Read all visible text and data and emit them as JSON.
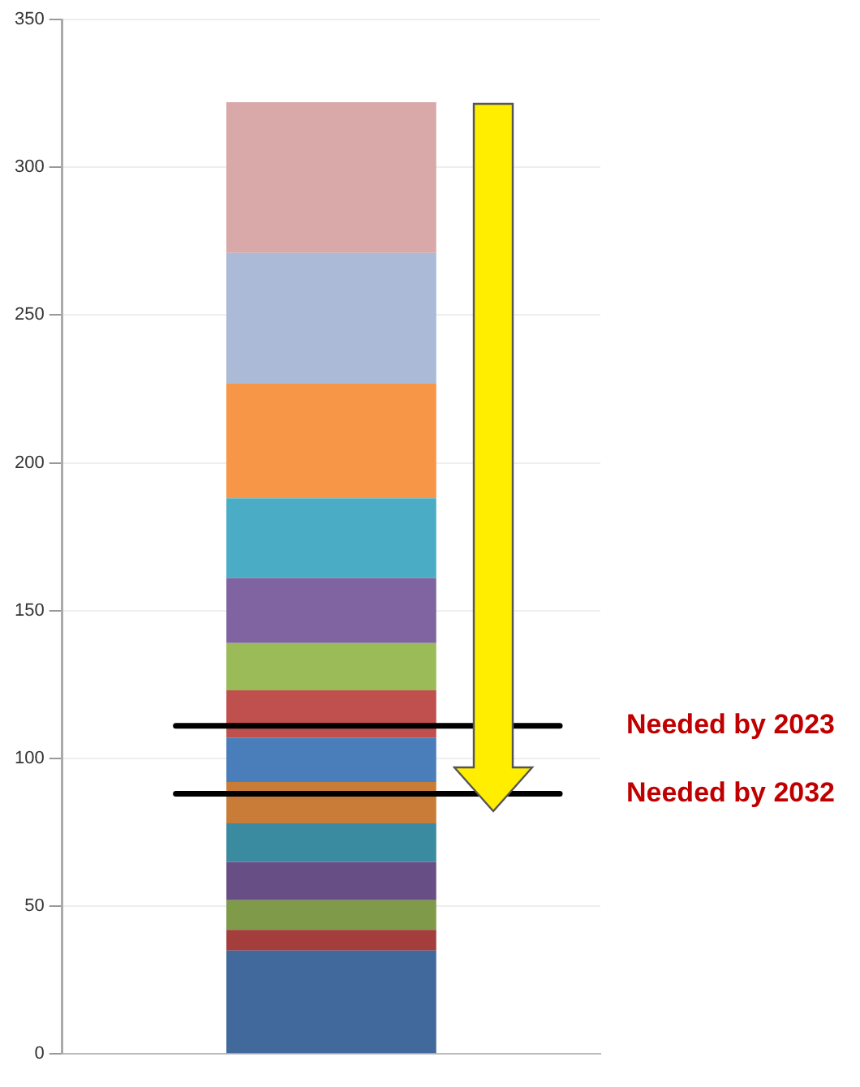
{
  "chart_data": {
    "type": "bar",
    "categories": [
      null
    ],
    "stacked": true,
    "series": [
      {
        "color": "#41699b",
        "values": [
          35
        ]
      },
      {
        "color": "#a33e3c",
        "values": [
          7
        ]
      },
      {
        "color": "#7f9a48",
        "values": [
          10
        ]
      },
      {
        "color": "#674f86",
        "values": [
          13
        ]
      },
      {
        "color": "#3a8aa0",
        "values": [
          13
        ]
      },
      {
        "color": "#c97c37",
        "values": [
          14
        ]
      },
      {
        "color": "#4a7ebb",
        "values": [
          15
        ]
      },
      {
        "color": "#c0504d",
        "values": [
          16
        ]
      },
      {
        "color": "#9bbb59",
        "values": [
          16
        ]
      },
      {
        "color": "#8064a2",
        "values": [
          22
        ]
      },
      {
        "color": "#4bacc6",
        "values": [
          27
        ]
      },
      {
        "color": "#f79646",
        "values": [
          39
        ]
      },
      {
        "color": "#aabad7",
        "values": [
          44
        ]
      },
      {
        "color": "#d9a8a9",
        "values": [
          51
        ]
      }
    ],
    "ylim": [
      0,
      350
    ],
    "yticks": [
      0,
      50,
      100,
      150,
      200,
      250,
      300,
      350
    ],
    "grid": "y",
    "legend": false,
    "ref_lines": [
      {
        "axis": "y",
        "value": 111,
        "label": "Needed by 2023",
        "color": "#000000"
      },
      {
        "axis": "y",
        "value": 88,
        "label": "Needed by 2032",
        "color": "#000000"
      }
    ]
  }
}
